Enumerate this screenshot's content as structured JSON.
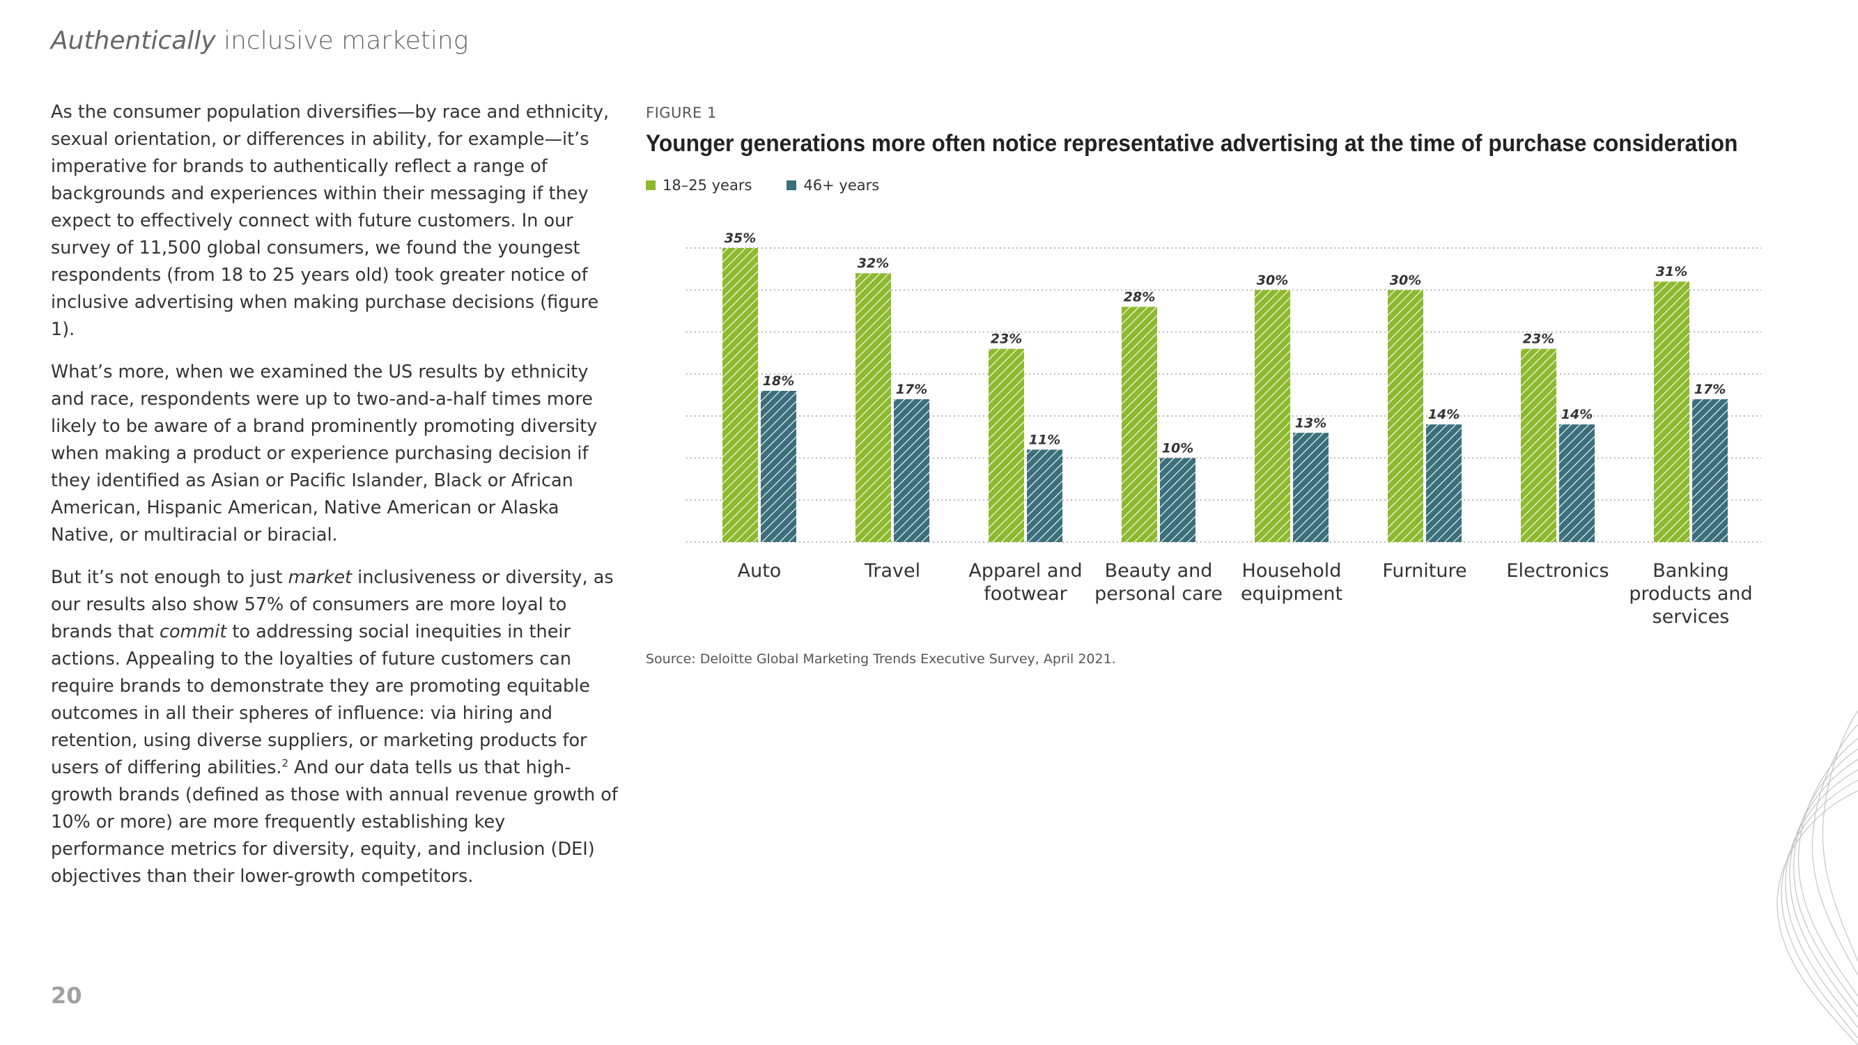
{
  "header": {
    "italic": "Authentically",
    "rest": "inclusive marketing"
  },
  "body": {
    "p1": "As the consumer population diversifies—by race and ethnicity, sexual orientation, or differences in ability, for example—it’s imperative for brands to authentically reflect a range of backgrounds and experiences within their messaging if they expect to effectively connect with future customers. In our survey of 11,500 global consumers, we found the youngest respondents (from 18 to 25 years old) took greater notice of inclusive advertising when making purchase decisions (figure 1).",
    "p2": "What’s more, when we examined the US results by ethnicity and race, respondents were up to two-and-a-half times more likely to be aware of a brand prominently promoting diversity when making a product or experience purchasing decision if they identified as Asian or Pacific Islander, Black or African American, Hispanic American, Native American or Alaska Native, or multiracial or biracial.",
    "p3_a": "But it’s not enough to just ",
    "p3_em1": "market",
    "p3_b": " inclusiveness or diversity, as our results also show 57% of consumers are more loyal to brands that ",
    "p3_em2": "commit",
    "p3_c": " to addressing social inequities in their actions. Appealing to the loyalties of future customers can require brands to demonstrate they are promoting equitable outcomes in all their spheres of influence: via hiring and retention, using diverse suppliers, or marketing products for users of differing abilities.",
    "p3_sup": "2",
    "p3_d": " And our data tells us that high-growth brands (defined as those with annual revenue growth of 10% or more) are more frequently establishing key performance metrics for diversity, equity, and inclusion (DEI) objectives than their lower-growth competitors."
  },
  "page_number": "20",
  "figure_label": "FIGURE 1",
  "source": "Source: Deloitte Global Marketing Trends Executive Survey, April 2021.",
  "colors": {
    "young": "#8db92e",
    "older": "#3a6f7b",
    "gridline": "#b8b8b8"
  },
  "chart_data": {
    "type": "bar",
    "title": "Younger generations more often notice representative advertising at the time of purchase consideration",
    "categories": [
      [
        "Auto"
      ],
      [
        "Travel"
      ],
      [
        "Apparel and",
        "footwear"
      ],
      [
        "Beauty and",
        "personal care"
      ],
      [
        "Household",
        "equipment"
      ],
      [
        "Furniture"
      ],
      [
        "Electronics"
      ],
      [
        "Banking",
        "products and",
        "services"
      ]
    ],
    "series": [
      {
        "name": "18–25 years",
        "values": [
          35,
          32,
          23,
          28,
          30,
          30,
          23,
          31
        ]
      },
      {
        "name": "46+ years",
        "values": [
          18,
          17,
          11,
          10,
          13,
          14,
          14,
          17
        ]
      }
    ],
    "value_suffix": "%",
    "ylim": [
      0,
      35
    ],
    "grid": true,
    "legend": "top-left"
  }
}
